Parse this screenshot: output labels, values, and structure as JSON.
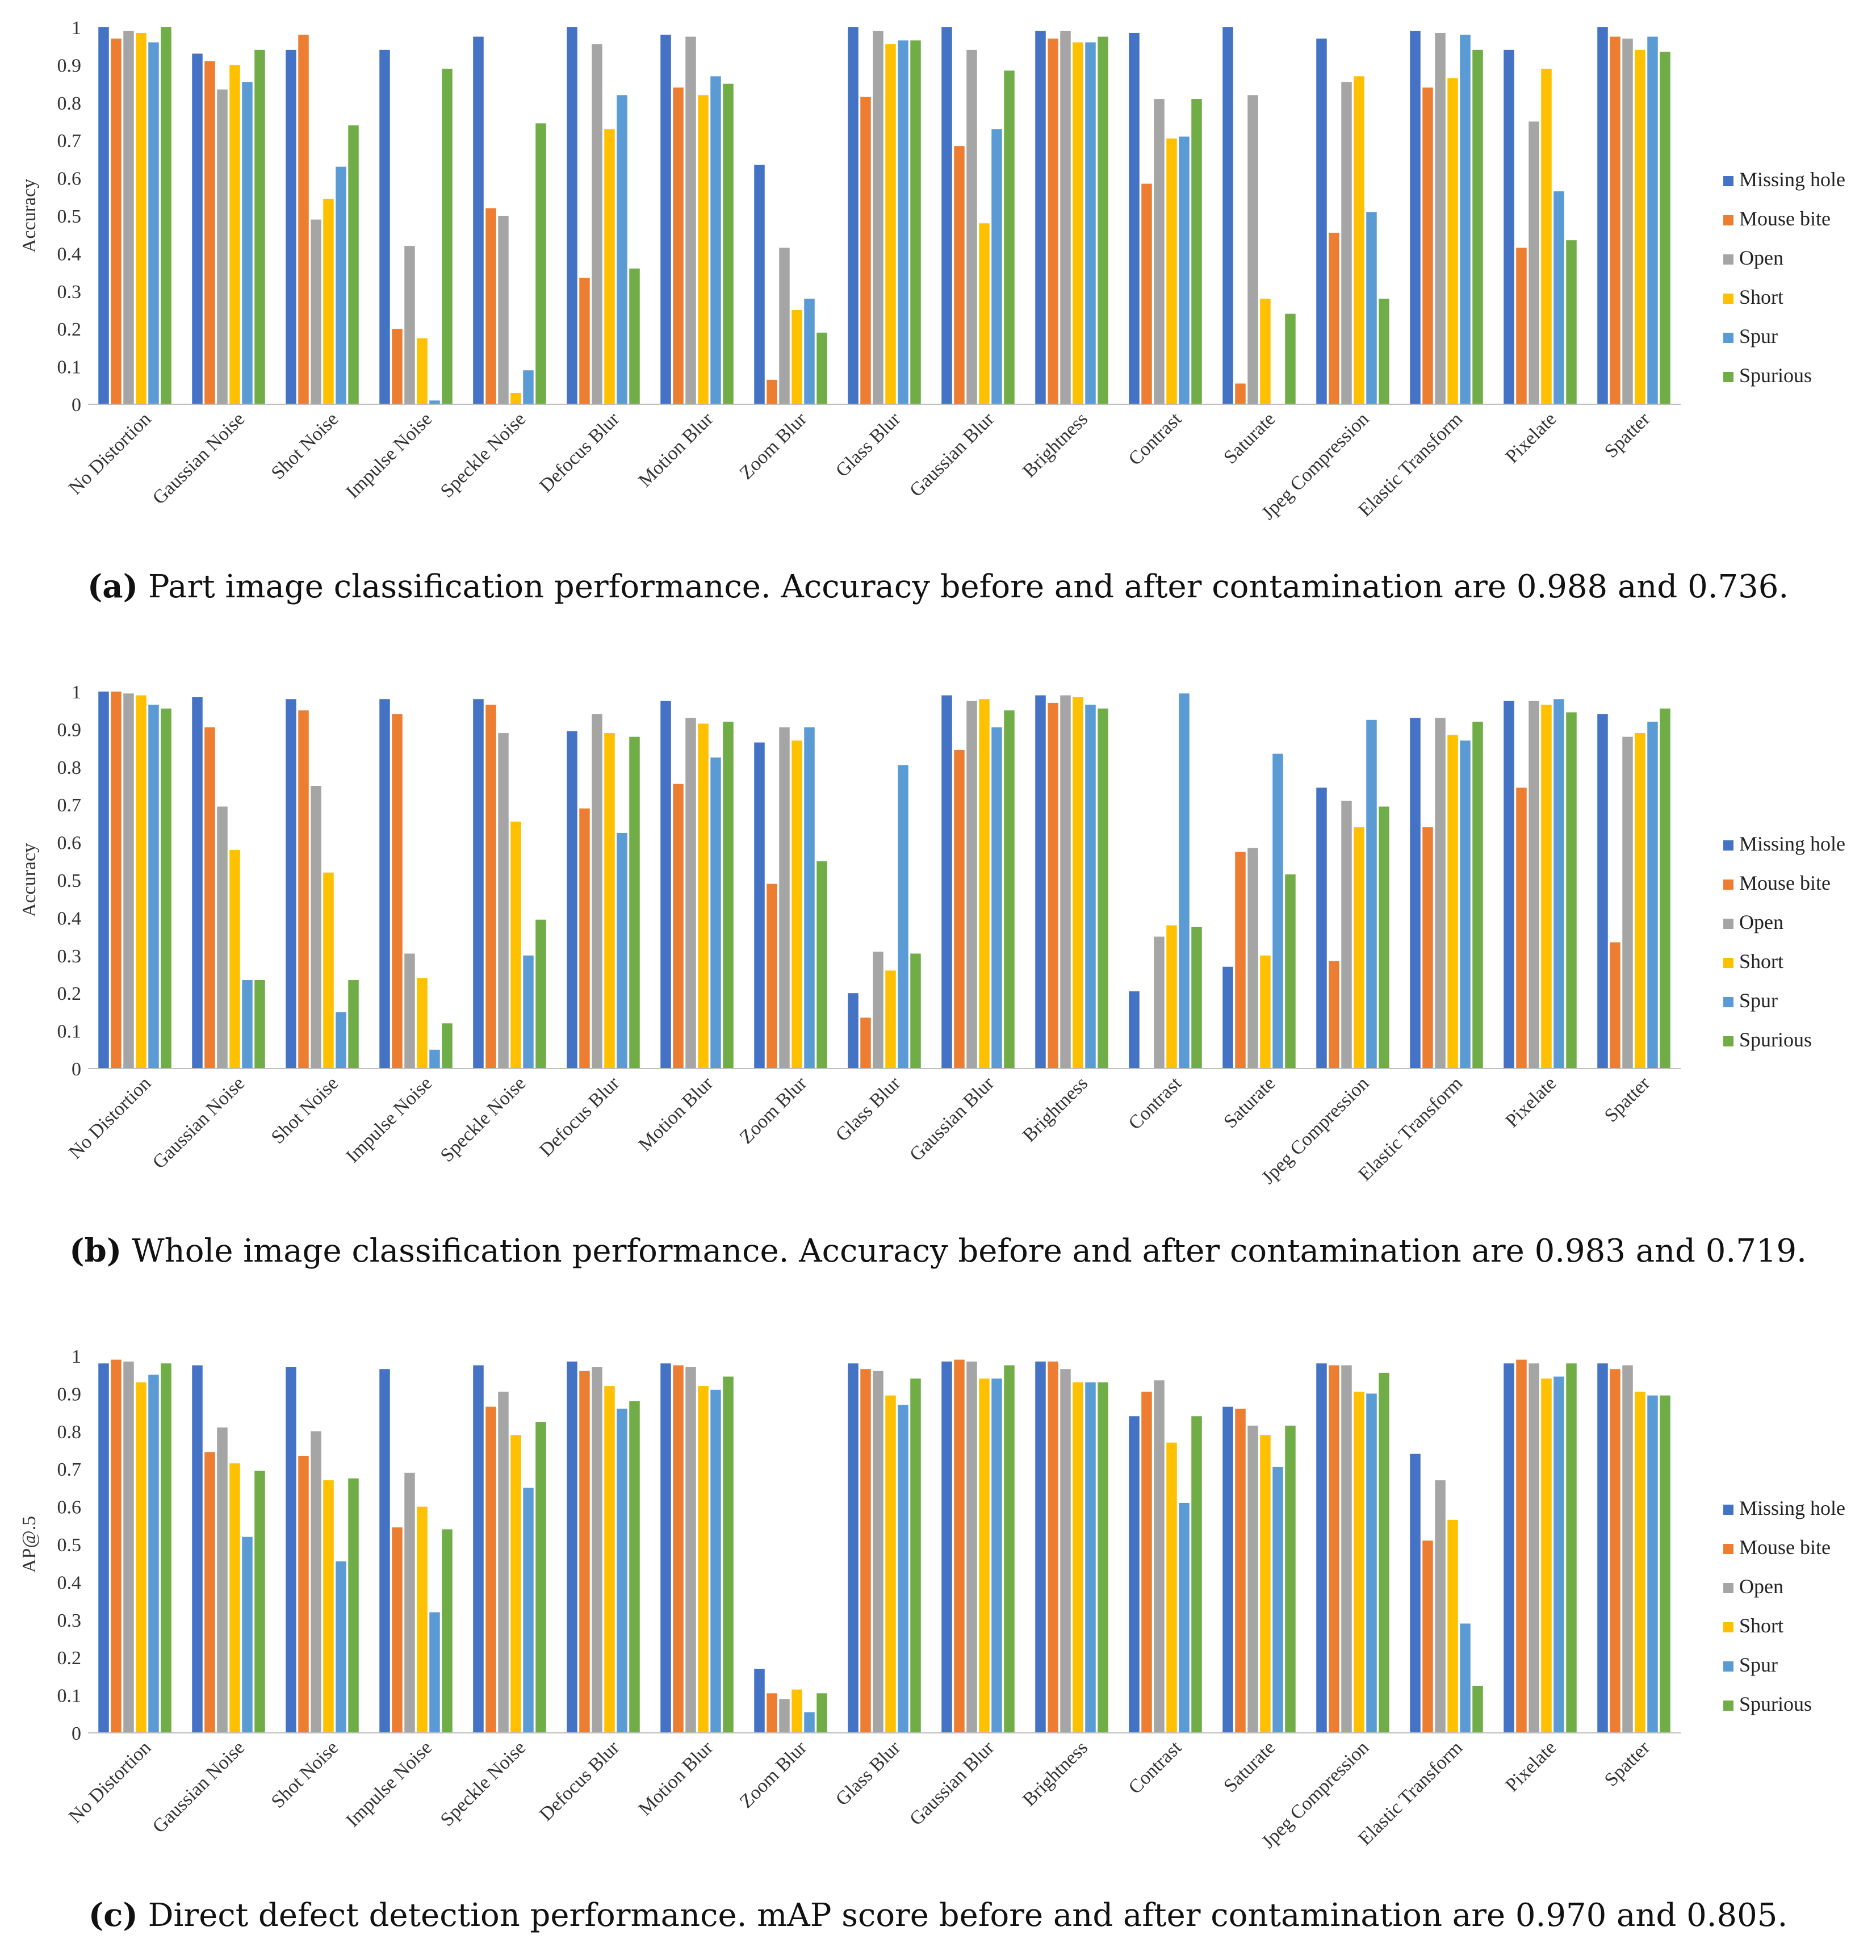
{
  "colors": {
    "Missing hole": "#4472C4",
    "Mouse bite": "#ED7D31",
    "Open": "#A5A5A5",
    "Short": "#FFC000",
    "Spur": "#5B9BD5",
    "Spurious": "#70AD47"
  },
  "chart_data": [
    {
      "type": "bar",
      "panel_label": "(a)",
      "caption": "Part image classification performance. Accuracy before and after contamination are 0.988 and 0.736.",
      "ylabel": "Accuracy",
      "ylim": [
        0,
        1
      ],
      "yticks": [
        "0",
        "0.1",
        "0.2",
        "0.3",
        "0.4",
        "0.5",
        "0.6",
        "0.7",
        "0.8",
        "0.9",
        "1"
      ],
      "categories": [
        "No Distortion",
        "Gaussian Noise",
        "Shot Noise",
        "Impulse Noise",
        "Speckle Noise",
        "Defocus Blur",
        "Motion Blur",
        "Zoom Blur",
        "Glass Blur",
        "Gaussian Blur",
        "Brightness",
        "Contrast",
        "Saturate",
        "Jpeg Compression",
        "Elastic Transform",
        "Pixelate",
        "Spatter"
      ],
      "series": [
        {
          "name": "Missing hole",
          "values": [
            1.0,
            0.93,
            0.94,
            0.94,
            0.975,
            1.0,
            0.98,
            0.635,
            1.0,
            1.0,
            0.99,
            0.985,
            1.0,
            0.97,
            0.99,
            0.94,
            1.0
          ]
        },
        {
          "name": "Mouse bite",
          "values": [
            0.97,
            0.91,
            0.98,
            0.2,
            0.52,
            0.335,
            0.84,
            0.065,
            0.815,
            0.685,
            0.97,
            0.585,
            0.055,
            0.455,
            0.84,
            0.415,
            0.975
          ]
        },
        {
          "name": "Open",
          "values": [
            0.99,
            0.835,
            0.49,
            0.42,
            0.5,
            0.955,
            0.975,
            0.415,
            0.99,
            0.94,
            0.99,
            0.81,
            0.82,
            0.855,
            0.985,
            0.75,
            0.97
          ]
        },
        {
          "name": "Short",
          "values": [
            0.985,
            0.9,
            0.545,
            0.175,
            0.03,
            0.73,
            0.82,
            0.25,
            0.955,
            0.48,
            0.96,
            0.705,
            0.28,
            0.87,
            0.865,
            0.89,
            0.94
          ]
        },
        {
          "name": "Spur",
          "values": [
            0.96,
            0.855,
            0.63,
            0.01,
            0.09,
            0.82,
            0.87,
            0.28,
            0.965,
            0.73,
            0.96,
            0.71,
            0.0,
            0.51,
            0.98,
            0.565,
            0.975
          ]
        },
        {
          "name": "Spurious",
          "values": [
            1.0,
            0.94,
            0.74,
            0.89,
            0.745,
            0.36,
            0.85,
            0.19,
            0.965,
            0.885,
            0.975,
            0.81,
            0.24,
            0.28,
            0.94,
            0.435,
            0.935
          ]
        }
      ]
    },
    {
      "type": "bar",
      "panel_label": "(b)",
      "caption": "Whole image classification performance. Accuracy before and after contamination are 0.983 and 0.719.",
      "ylabel": "Accuracy",
      "ylim": [
        0,
        1
      ],
      "yticks": [
        "0",
        "0.1",
        "0.2",
        "0.3",
        "0.4",
        "0.5",
        "0.6",
        "0.7",
        "0.8",
        "0.9",
        "1"
      ],
      "categories": [
        "No Distortion",
        "Gaussian Noise",
        "Shot Noise",
        "Impulse Noise",
        "Speckle Noise",
        "Defocus Blur",
        "Motion Blur",
        "Zoom Blur",
        "Glass Blur",
        "Gaussian Blur",
        "Brightness",
        "Contrast",
        "Saturate",
        "Jpeg Compression",
        "Elastic Transform",
        "Pixelate",
        "Spatter"
      ],
      "series": [
        {
          "name": "Missing hole",
          "values": [
            1.0,
            0.985,
            0.98,
            0.98,
            0.98,
            0.895,
            0.975,
            0.865,
            0.2,
            0.99,
            0.99,
            0.205,
            0.27,
            0.745,
            0.93,
            0.975,
            0.94
          ]
        },
        {
          "name": "Mouse bite",
          "values": [
            1.0,
            0.905,
            0.95,
            0.94,
            0.965,
            0.69,
            0.755,
            0.49,
            0.135,
            0.845,
            0.97,
            0.0,
            0.575,
            0.285,
            0.64,
            0.745,
            0.335
          ]
        },
        {
          "name": "Open",
          "values": [
            0.995,
            0.695,
            0.75,
            0.305,
            0.89,
            0.94,
            0.93,
            0.905,
            0.31,
            0.975,
            0.99,
            0.35,
            0.585,
            0.71,
            0.93,
            0.975,
            0.88
          ]
        },
        {
          "name": "Short",
          "values": [
            0.99,
            0.58,
            0.52,
            0.24,
            0.655,
            0.89,
            0.915,
            0.87,
            0.26,
            0.98,
            0.985,
            0.38,
            0.3,
            0.64,
            0.885,
            0.965,
            0.89
          ]
        },
        {
          "name": "Spur",
          "values": [
            0.965,
            0.235,
            0.15,
            0.05,
            0.3,
            0.625,
            0.825,
            0.905,
            0.805,
            0.905,
            0.965,
            0.995,
            0.835,
            0.925,
            0.87,
            0.98,
            0.92
          ]
        },
        {
          "name": "Spurious",
          "values": [
            0.955,
            0.235,
            0.235,
            0.12,
            0.395,
            0.88,
            0.92,
            0.55,
            0.305,
            0.95,
            0.955,
            0.375,
            0.515,
            0.695,
            0.92,
            0.945,
            0.955
          ]
        }
      ]
    },
    {
      "type": "bar",
      "panel_label": "(c)",
      "caption": "Direct defect detection performance. mAP score before and after contamination are 0.970 and 0.805.",
      "ylabel": "AP@.5",
      "ylim": [
        0,
        1
      ],
      "yticks": [
        "0",
        "0.1",
        "0.2",
        "0.3",
        "0.4",
        "0.5",
        "0.6",
        "0.7",
        "0.8",
        "0.9",
        "1"
      ],
      "categories": [
        "No Distortion",
        "Gaussian Noise",
        "Shot Noise",
        "Impulse Noise",
        "Speckle Noise",
        "Defocus Blur",
        "Motion Blur",
        "Zoom Blur",
        "Glass Blur",
        "Gaussian Blur",
        "Brightness",
        "Contrast",
        "Saturate",
        "Jpeg Compression",
        "Elastic Transform",
        "Pixelate",
        "Spatter"
      ],
      "series": [
        {
          "name": "Missing hole",
          "values": [
            0.98,
            0.975,
            0.97,
            0.965,
            0.975,
            0.985,
            0.98,
            0.17,
            0.98,
            0.985,
            0.985,
            0.84,
            0.865,
            0.98,
            0.74,
            0.98,
            0.98
          ]
        },
        {
          "name": "Mouse bite",
          "values": [
            0.99,
            0.745,
            0.735,
            0.545,
            0.865,
            0.96,
            0.975,
            0.105,
            0.965,
            0.99,
            0.985,
            0.905,
            0.86,
            0.975,
            0.51,
            0.99,
            0.965
          ]
        },
        {
          "name": "Open",
          "values": [
            0.985,
            0.81,
            0.8,
            0.69,
            0.905,
            0.97,
            0.97,
            0.09,
            0.96,
            0.985,
            0.965,
            0.935,
            0.815,
            0.975,
            0.67,
            0.98,
            0.975
          ]
        },
        {
          "name": "Short",
          "values": [
            0.93,
            0.715,
            0.67,
            0.6,
            0.79,
            0.92,
            0.92,
            0.115,
            0.895,
            0.94,
            0.93,
            0.77,
            0.79,
            0.905,
            0.565,
            0.94,
            0.905
          ]
        },
        {
          "name": "Spur",
          "values": [
            0.95,
            0.52,
            0.455,
            0.32,
            0.65,
            0.86,
            0.91,
            0.055,
            0.87,
            0.94,
            0.93,
            0.61,
            0.705,
            0.9,
            0.29,
            0.945,
            0.895
          ]
        },
        {
          "name": "Spurious",
          "values": [
            0.98,
            0.695,
            0.675,
            0.54,
            0.825,
            0.88,
            0.945,
            0.105,
            0.94,
            0.975,
            0.93,
            0.84,
            0.815,
            0.955,
            0.125,
            0.98,
            0.895
          ]
        }
      ]
    }
  ]
}
